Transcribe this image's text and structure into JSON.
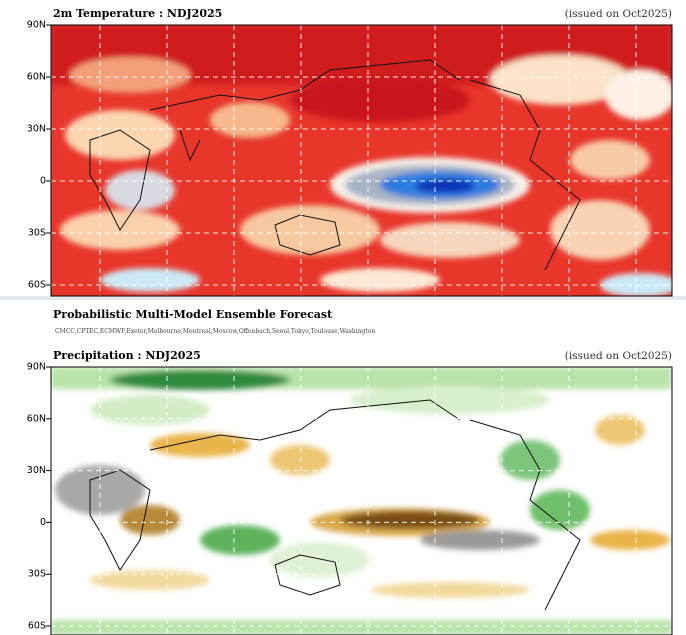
{
  "panels": [
    {
      "title": "2m Temperature : NDJ2025",
      "issued": "(issued on Oct2025)",
      "lat_labels": [
        "90N",
        "60N",
        "30N",
        "0",
        "30S",
        "60S"
      ]
    },
    {
      "title": "Precipitation : NDJ2025",
      "issued": "(issued on Oct2025)",
      "lat_labels": [
        "90N",
        "60N",
        "30N",
        "0",
        "30S",
        "60S"
      ]
    }
  ],
  "header": {
    "title": "Probabilistic Multi-Model Ensemble Forecast",
    "models": "CMCC,CPTEC,ECMWF,Exeter,Melbourne,Montreal,Moscow,Offenbach,Seoul,Tokyo,Toulouse,Washington"
  }
}
